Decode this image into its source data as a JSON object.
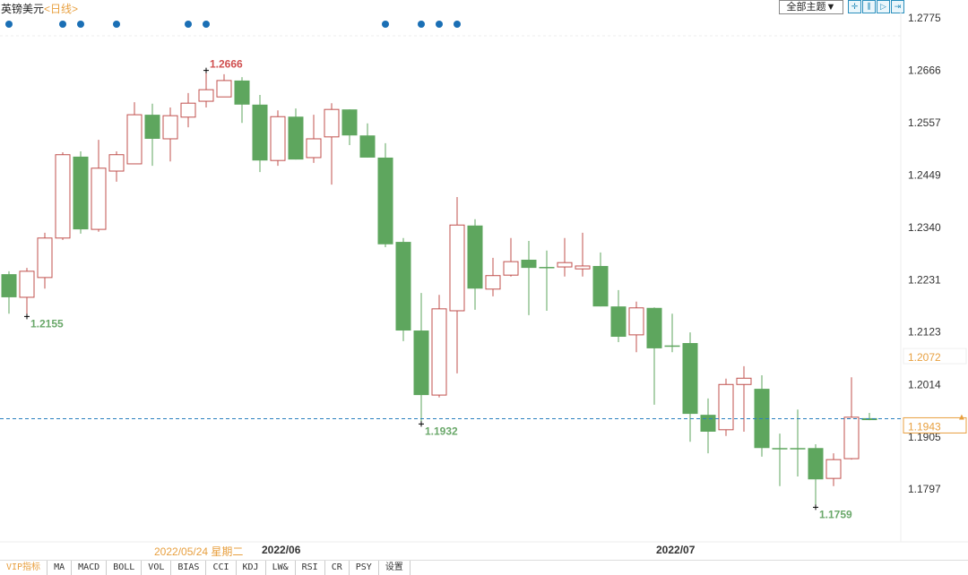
{
  "header": {
    "symbol": "英镑美元",
    "period": "<日线>",
    "theme_button": "全部主题▼",
    "tools": [
      {
        "icon": "crosshair-icon",
        "glyph": "✛"
      },
      {
        "icon": "zoom-in-icon",
        "glyph": "⫼"
      },
      {
        "icon": "play-icon",
        "glyph": "▷"
      },
      {
        "icon": "go-latest-icon",
        "glyph": "⇥"
      }
    ]
  },
  "colors": {
    "up": "#c0504d",
    "down": "#5ea65e",
    "event_dot": "#1a6fb5",
    "current_line": "#2a7fbf",
    "accent": "#e8a040",
    "high_label": "#d05050",
    "low_label": "#6aa86a"
  },
  "chart_data": {
    "type": "candlestick",
    "ylim": [
      1.17,
      1.28
    ],
    "y_ticks": [
      "1.2775",
      "1.2666",
      "1.2557",
      "1.2449",
      "1.2340",
      "1.2231",
      "1.2123",
      "1.2014",
      "1.1905",
      "1.1797"
    ],
    "x_labels": [
      {
        "label": "2022/06",
        "index": 14
      },
      {
        "label": "2022/07",
        "index": 36
      }
    ],
    "hover_date": "2022/05/24 星期二",
    "hover_price": "1.2072",
    "current_price": "1.1943",
    "high_label": {
      "text": "1.2666",
      "index": 11,
      "value": 1.2666
    },
    "lows": [
      {
        "text": "1.2155",
        "index": 1,
        "value": 1.2155
      },
      {
        "text": "1.1932",
        "index": 23,
        "value": 1.1932
      },
      {
        "text": "1.1759",
        "index": 45,
        "value": 1.1759
      }
    ],
    "event_indices": [
      0,
      3,
      4,
      6,
      10,
      11,
      21,
      23,
      24,
      25
    ],
    "ohlc": [
      [
        1.2243,
        1.2249,
        1.2161,
        1.2195
      ],
      [
        1.2195,
        1.2256,
        1.2155,
        1.2249
      ],
      [
        1.2236,
        1.2329,
        1.2213,
        1.2318
      ],
      [
        1.2318,
        1.2496,
        1.2314,
        1.2491
      ],
      [
        1.2487,
        1.2498,
        1.2327,
        1.2336
      ],
      [
        1.2336,
        1.2522,
        1.2331,
        1.2463
      ],
      [
        1.2457,
        1.2498,
        1.2435,
        1.2491
      ],
      [
        1.2472,
        1.26,
        1.2472,
        1.2574
      ],
      [
        1.2574,
        1.2597,
        1.2468,
        1.2524
      ],
      [
        1.2524,
        1.2589,
        1.2477,
        1.2572
      ],
      [
        1.2569,
        1.2619,
        1.2548,
        1.2598
      ],
      [
        1.2602,
        1.2666,
        1.2589,
        1.2626
      ],
      [
        1.2611,
        1.2658,
        1.2611,
        1.2645
      ],
      [
        1.2645,
        1.2652,
        1.2557,
        1.2595
      ],
      [
        1.2595,
        1.2615,
        1.2455,
        1.2479
      ],
      [
        1.2479,
        1.2583,
        1.2468,
        1.257
      ],
      [
        1.257,
        1.2587,
        1.2481,
        1.2481
      ],
      [
        1.2485,
        1.2574,
        1.2474,
        1.2524
      ],
      [
        1.2528,
        1.2598,
        1.2429,
        1.2585
      ],
      [
        1.2585,
        1.2585,
        1.2511,
        1.2531
      ],
      [
        1.2531,
        1.2556,
        1.2485,
        1.2485
      ],
      [
        1.2485,
        1.2515,
        1.2299,
        1.2305
      ],
      [
        1.231,
        1.2318,
        1.2104,
        1.2126
      ],
      [
        1.2126,
        1.2204,
        1.1932,
        1.1992
      ],
      [
        1.1992,
        1.22,
        1.1987,
        1.2171
      ],
      [
        1.2167,
        1.2403,
        1.2037,
        1.2345
      ],
      [
        1.2344,
        1.2357,
        1.2169,
        1.2213
      ],
      [
        1.2212,
        1.2277,
        1.2197,
        1.224
      ],
      [
        1.2241,
        1.2318,
        1.2238,
        1.2269
      ],
      [
        1.2273,
        1.2312,
        1.2158,
        1.2256
      ],
      [
        1.2258,
        1.2292,
        1.2167,
        1.2256
      ],
      [
        1.2258,
        1.2318,
        1.2238,
        1.2267
      ],
      [
        1.2254,
        1.2329,
        1.2238,
        1.226
      ],
      [
        1.226,
        1.2288,
        1.2176,
        1.2176
      ],
      [
        1.2176,
        1.221,
        1.2102,
        1.2113
      ],
      [
        1.2117,
        1.2186,
        1.2081,
        1.2173
      ],
      [
        1.2173,
        1.2174,
        1.1972,
        1.2089
      ],
      [
        1.2095,
        1.2161,
        1.2081,
        1.2095
      ],
      [
        1.21,
        1.2122,
        1.1895,
        1.1953
      ],
      [
        1.1951,
        1.1985,
        1.1871,
        1.1916
      ],
      [
        1.192,
        1.2026,
        1.1907,
        1.2014
      ],
      [
        1.2014,
        1.2052,
        1.1916,
        1.2027
      ],
      [
        1.2005,
        1.2033,
        1.1864,
        1.1882
      ],
      [
        1.1882,
        1.1912,
        1.1803,
        1.1882
      ],
      [
        1.1882,
        1.1962,
        1.1823,
        1.1882
      ],
      [
        1.1882,
        1.189,
        1.1759,
        1.1817
      ],
      [
        1.1819,
        1.1871,
        1.1803,
        1.1858
      ],
      [
        1.186,
        1.2029,
        1.1858,
        1.1946
      ],
      [
        1.1944,
        1.1955,
        1.194,
        1.194
      ]
    ]
  },
  "footer": {
    "tabs": [
      "VIP指标",
      "MA",
      "MACD",
      "BOLL",
      "VOL",
      "BIAS",
      "CCI",
      "KDJ",
      "LW&",
      "RSI",
      "CR",
      "PSY",
      "设置"
    ],
    "active": 0
  }
}
